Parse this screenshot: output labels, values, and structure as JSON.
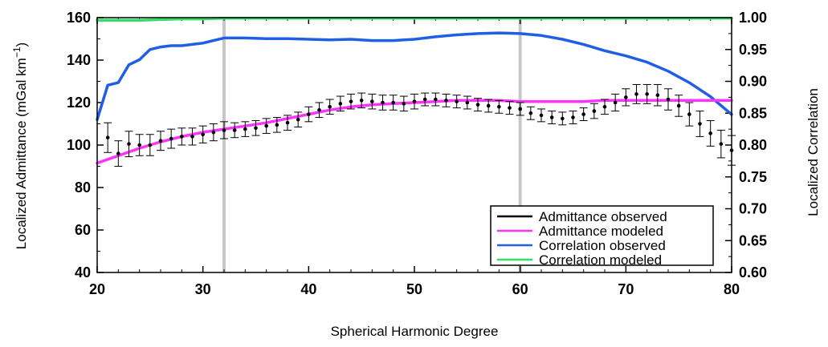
{
  "chart_data": {
    "type": "line",
    "xlabel": "Spherical Harmonic Degree",
    "ylabel_left": "Localized Admittance (mGal km",
    "ylabel_left_exp": "−1",
    "ylabel_left_close": ")",
    "ylabel_right": "Localized Correlation",
    "xlim": [
      20,
      80
    ],
    "ylim_left": [
      40,
      160
    ],
    "ylim_right": [
      0.6,
      1.0
    ],
    "x_ticks": [
      20,
      30,
      40,
      50,
      60,
      70,
      80
    ],
    "x_tick_labels": [
      "20",
      "30",
      "40",
      "50",
      "60",
      "70",
      "80"
    ],
    "y_left_ticks": [
      40,
      60,
      80,
      100,
      120,
      140,
      160
    ],
    "y_left_tick_labels": [
      "40",
      "60",
      "80",
      "100",
      "120",
      "140",
      "160"
    ],
    "y_right_ticks": [
      0.6,
      0.65,
      0.7,
      0.75,
      0.8,
      0.85,
      0.9,
      0.95,
      1.0
    ],
    "y_right_tick_labels": [
      "0.60",
      "0.65",
      "0.70",
      "0.75",
      "0.80",
      "0.85",
      "0.90",
      "0.95",
      "1.00"
    ],
    "vertical_lines": [
      32,
      60
    ],
    "legend_position": "bottom-right",
    "series": [
      {
        "name": "Admittance observed",
        "axis": "left",
        "style": "points-with-errorbars",
        "color": "#000000",
        "x": [
          21,
          22,
          23,
          24,
          25,
          26,
          27,
          28,
          29,
          30,
          31,
          32,
          33,
          34,
          35,
          36,
          37,
          38,
          39,
          40,
          41,
          42,
          43,
          44,
          45,
          46,
          47,
          48,
          49,
          50,
          51,
          52,
          53,
          54,
          55,
          56,
          57,
          58,
          59,
          60,
          61,
          62,
          63,
          64,
          65,
          66,
          67,
          68,
          69,
          70,
          71,
          72,
          73,
          74,
          75,
          76,
          77,
          78,
          79,
          80
        ],
        "y": [
          103.5,
          96,
          100.5,
          100,
          100,
          102,
          103,
          104,
          104,
          105,
          106,
          107,
          107,
          107.5,
          108,
          109,
          109.5,
          110.5,
          112,
          114.5,
          116.5,
          118,
          119.5,
          120.5,
          121,
          120.5,
          120,
          120,
          119.5,
          120.5,
          121.5,
          121.5,
          121,
          120.5,
          120,
          119,
          118.5,
          118,
          117.5,
          117,
          115,
          114,
          113,
          112.5,
          113,
          114.5,
          116,
          118,
          120,
          122.5,
          124,
          124,
          123.5,
          121.5,
          118.5,
          114.5,
          110,
          105.5,
          100.5,
          97.5
        ],
        "err": [
          7,
          6,
          6,
          5,
          5,
          4.5,
          4.5,
          4,
          4,
          4,
          4,
          4,
          3.5,
          3.5,
          3.5,
          3.5,
          3.5,
          3.5,
          3.5,
          3.5,
          3.5,
          3.5,
          3.5,
          3.5,
          3.5,
          3.5,
          3.5,
          3.5,
          3.5,
          3.5,
          3,
          3,
          3,
          3,
          3,
          3,
          3,
          3,
          3,
          3,
          3,
          3,
          3,
          3,
          3,
          3,
          3.5,
          3.5,
          4,
          4,
          4.5,
          4.5,
          5,
          5,
          5,
          5.5,
          6,
          6,
          6.5,
          7
        ]
      },
      {
        "name": "Admittance modeled",
        "axis": "left",
        "style": "line",
        "color": "#ff33ff",
        "x": [
          20,
          22,
          24,
          26,
          28,
          30,
          32,
          34,
          36,
          38,
          40,
          42,
          44,
          46,
          48,
          50,
          52,
          54,
          56,
          58,
          60,
          62,
          64,
          66,
          68,
          70,
          72,
          74,
          76,
          78,
          80
        ],
        "y": [
          91.5,
          95,
          98.5,
          101.5,
          104,
          106,
          107.5,
          109,
          110.5,
          112.5,
          114.5,
          116.5,
          118,
          119,
          119.5,
          120,
          120.5,
          121,
          121,
          121,
          120.5,
          120.5,
          120.5,
          120.5,
          121,
          121,
          121,
          121,
          121,
          121,
          121
        ]
      },
      {
        "name": "Correlation observed",
        "axis": "right",
        "style": "line",
        "color": "#1f5fe6",
        "x": [
          20,
          21,
          22,
          23,
          24,
          25,
          26,
          27,
          28,
          29,
          30,
          31,
          32,
          34,
          36,
          38,
          40,
          42,
          44,
          46,
          48,
          50,
          52,
          54,
          56,
          58,
          60,
          62,
          64,
          66,
          68,
          70,
          72,
          74,
          76,
          78,
          79,
          80
        ],
        "y": [
          0.84,
          0.894,
          0.898,
          0.926,
          0.934,
          0.95,
          0.954,
          0.956,
          0.956,
          0.958,
          0.96,
          0.964,
          0.968,
          0.968,
          0.967,
          0.967,
          0.966,
          0.965,
          0.966,
          0.964,
          0.964,
          0.966,
          0.97,
          0.973,
          0.975,
          0.976,
          0.975,
          0.972,
          0.966,
          0.958,
          0.948,
          0.94,
          0.93,
          0.916,
          0.898,
          0.876,
          0.862,
          0.848
        ]
      },
      {
        "name": "Correlation modeled",
        "axis": "right",
        "style": "line",
        "color": "#33dd66",
        "x": [
          20,
          22,
          24,
          26,
          28,
          30,
          32,
          40,
          50,
          60,
          70,
          80
        ],
        "y": [
          0.996,
          0.996,
          0.996,
          0.997,
          0.998,
          0.998,
          0.999,
          0.999,
          0.999,
          0.999,
          0.999,
          0.999
        ]
      }
    ]
  }
}
